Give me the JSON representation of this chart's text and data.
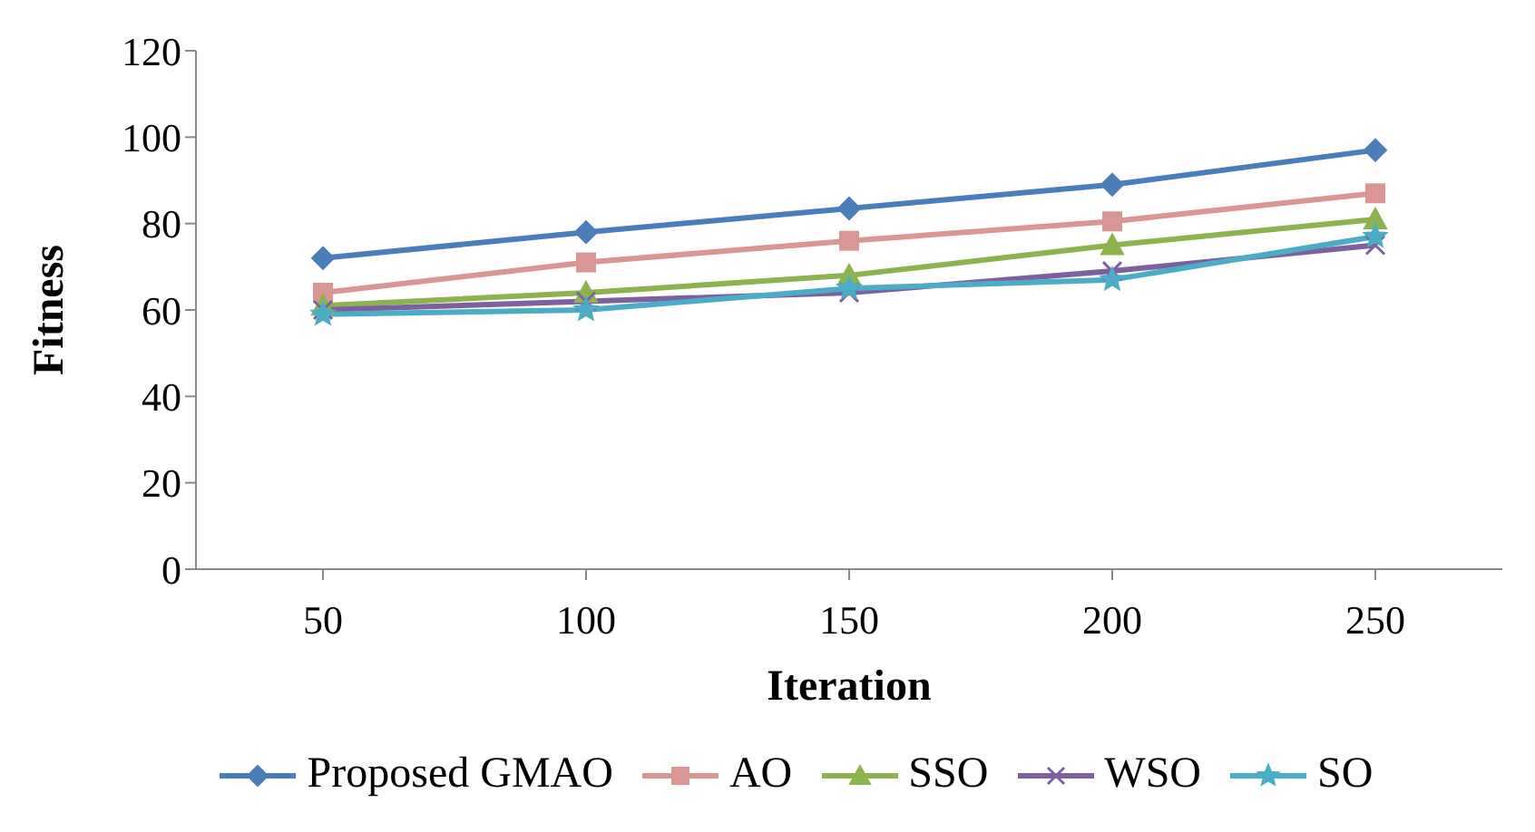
{
  "chart_data": {
    "type": "line",
    "xlabel": "Iteration",
    "ylabel": "Fitness",
    "categories": [
      "50",
      "100",
      "150",
      "200",
      "250"
    ],
    "ylim": [
      0,
      120
    ],
    "yticks": [
      0,
      20,
      40,
      60,
      80,
      100,
      120
    ],
    "grid": false,
    "legend": "bottom",
    "line_style": "solid",
    "series": [
      {
        "name": "Proposed GMAO",
        "color": "#4a7ebb",
        "marker": "diamond",
        "values": [
          72,
          78,
          83.5,
          89,
          97
        ]
      },
      {
        "name": "AO",
        "color": "#d99694",
        "marker": "square",
        "values": [
          64,
          71,
          76,
          80.5,
          87
        ]
      },
      {
        "name": "SSO",
        "color": "#8db24e",
        "marker": "triangle",
        "values": [
          61,
          64,
          68,
          75,
          81
        ]
      },
      {
        "name": "WSO",
        "color": "#7d60a0",
        "marker": "cross",
        "values": [
          60,
          62,
          64,
          69,
          75
        ]
      },
      {
        "name": "SO",
        "color": "#4bacc6",
        "marker": "star",
        "values": [
          59,
          60,
          65,
          67,
          77
        ]
      }
    ]
  }
}
